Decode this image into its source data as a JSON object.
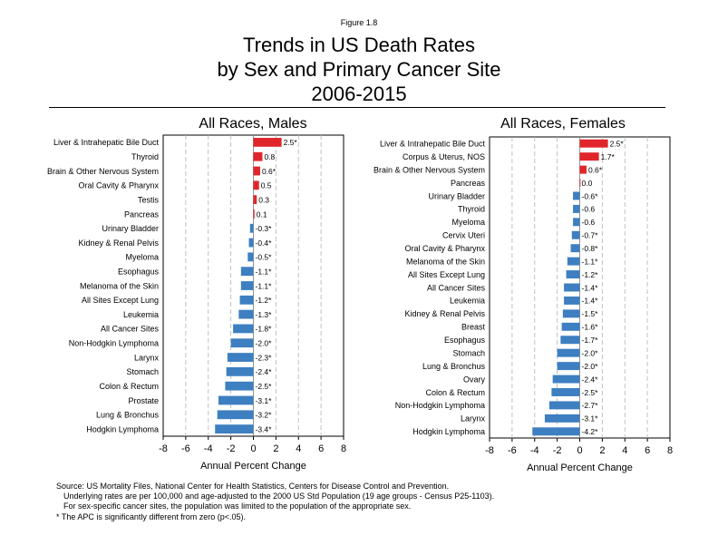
{
  "figure_label": "Figure 1.8",
  "title_lines": [
    "Trends in US Death Rates",
    "by Sex and Primary Cancer Site",
    "2006-2015"
  ],
  "colors": {
    "positive": "#e0262b",
    "negative": "#3d7fc1",
    "grid": "#bbbbbb"
  },
  "notes": [
    "Source: US Mortality Files, National Center for Health Statistics, Centers for Disease Control and Prevention.",
    "Underlying rates are per 100,000 and age-adjusted to the 2000 US Std Population (19 age groups - Census P25-1103).",
    "For sex-specific cancer sites, the population was limited to the population of the appropriate sex.",
    "* The APC is significantly different from zero (p<.05)."
  ],
  "chart_data": [
    {
      "type": "bar",
      "orientation": "horizontal",
      "title": "All Races, Males",
      "xlabel": "Annual Percent Change",
      "xlim": [
        -8,
        8
      ],
      "xticks": [
        "-8",
        "-6",
        "-4",
        "-2",
        "0",
        "2",
        "4",
        "6",
        "8"
      ],
      "grid": "vertical dashed",
      "categories": [
        "Liver & Intrahepatic Bile Duct",
        "Thyroid",
        "Brain & Other Nervous System",
        "Oral Cavity & Pharynx",
        "Testis",
        "Pancreas",
        "Urinary Bladder",
        "Kidney & Renal Pelvis",
        "Myeloma",
        "Esophagus",
        "Melanoma of the Skin",
        "All Sites Except Lung",
        "Leukemia",
        "All Cancer Sites",
        "Non-Hodgkin Lymphoma",
        "Larynx",
        "Stomach",
        "Colon & Rectum",
        "Prostate",
        "Lung & Bronchus",
        "Hodgkin Lymphoma"
      ],
      "values": [
        2.5,
        0.8,
        0.6,
        0.5,
        0.3,
        0.1,
        -0.3,
        -0.4,
        -0.5,
        -1.1,
        -1.1,
        -1.2,
        -1.3,
        -1.8,
        -2.0,
        -2.3,
        -2.4,
        -2.5,
        -3.1,
        -3.2,
        -3.4
      ],
      "labels": [
        "2.5*",
        "0.8",
        "0.6*",
        "0.5",
        "0.3",
        "0.1",
        "-0.3*",
        "-0.4*",
        "-0.5*",
        "-1.1*",
        "-1.1*",
        "-1.2*",
        "-1.3*",
        "-1.8*",
        "-2.0*",
        "-2.3*",
        "-2.4*",
        "-2.5*",
        "-3.1*",
        "-3.2*",
        "-3.4*"
      ]
    },
    {
      "type": "bar",
      "orientation": "horizontal",
      "title": "All Races, Females",
      "xlabel": "Annual Percent Change",
      "xlim": [
        -8,
        8
      ],
      "xticks": [
        "-8",
        "-6",
        "-4",
        "-2",
        "0",
        "2",
        "4",
        "6",
        "8"
      ],
      "grid": "vertical dashed",
      "categories": [
        "Liver & Intrahepatic Bile Duct",
        "Corpus & Uterus, NOS",
        "Brain & Other Nervous System",
        "Pancreas",
        "Urinary Bladder",
        "Thyroid",
        "Myeloma",
        "Cervix Uteri",
        "Oral Cavity & Pharynx",
        "Melanoma of the Skin",
        "All Sites Except Lung",
        "All Cancer Sites",
        "Leukemia",
        "Kidney & Renal Pelvis",
        "Breast",
        "Esophagus",
        "Stomach",
        "Lung & Bronchus",
        "Ovary",
        "Colon & Rectum",
        "Non-Hodgkin Lymphoma",
        "Larynx",
        "Hodgkin Lymphoma"
      ],
      "values": [
        2.5,
        1.7,
        0.6,
        0.0,
        -0.6,
        -0.6,
        -0.6,
        -0.7,
        -0.8,
        -1.1,
        -1.2,
        -1.4,
        -1.4,
        -1.5,
        -1.6,
        -1.7,
        -2.0,
        -2.0,
        -2.4,
        -2.5,
        -2.7,
        -3.1,
        -4.2
      ],
      "labels": [
        "2.5*",
        "1.7*",
        "0.6*",
        "0.0",
        "-0.6*",
        "-0.6",
        "-0.6",
        "-0.7*",
        "-0.8*",
        "-1.1*",
        "-1.2*",
        "-1.4*",
        "-1.4*",
        "-1.5*",
        "-1.6*",
        "-1.7*",
        "-2.0*",
        "-2.0*",
        "-2.4*",
        "-2.5*",
        "-2.7*",
        "-3.1*",
        "-4.2*"
      ]
    }
  ]
}
